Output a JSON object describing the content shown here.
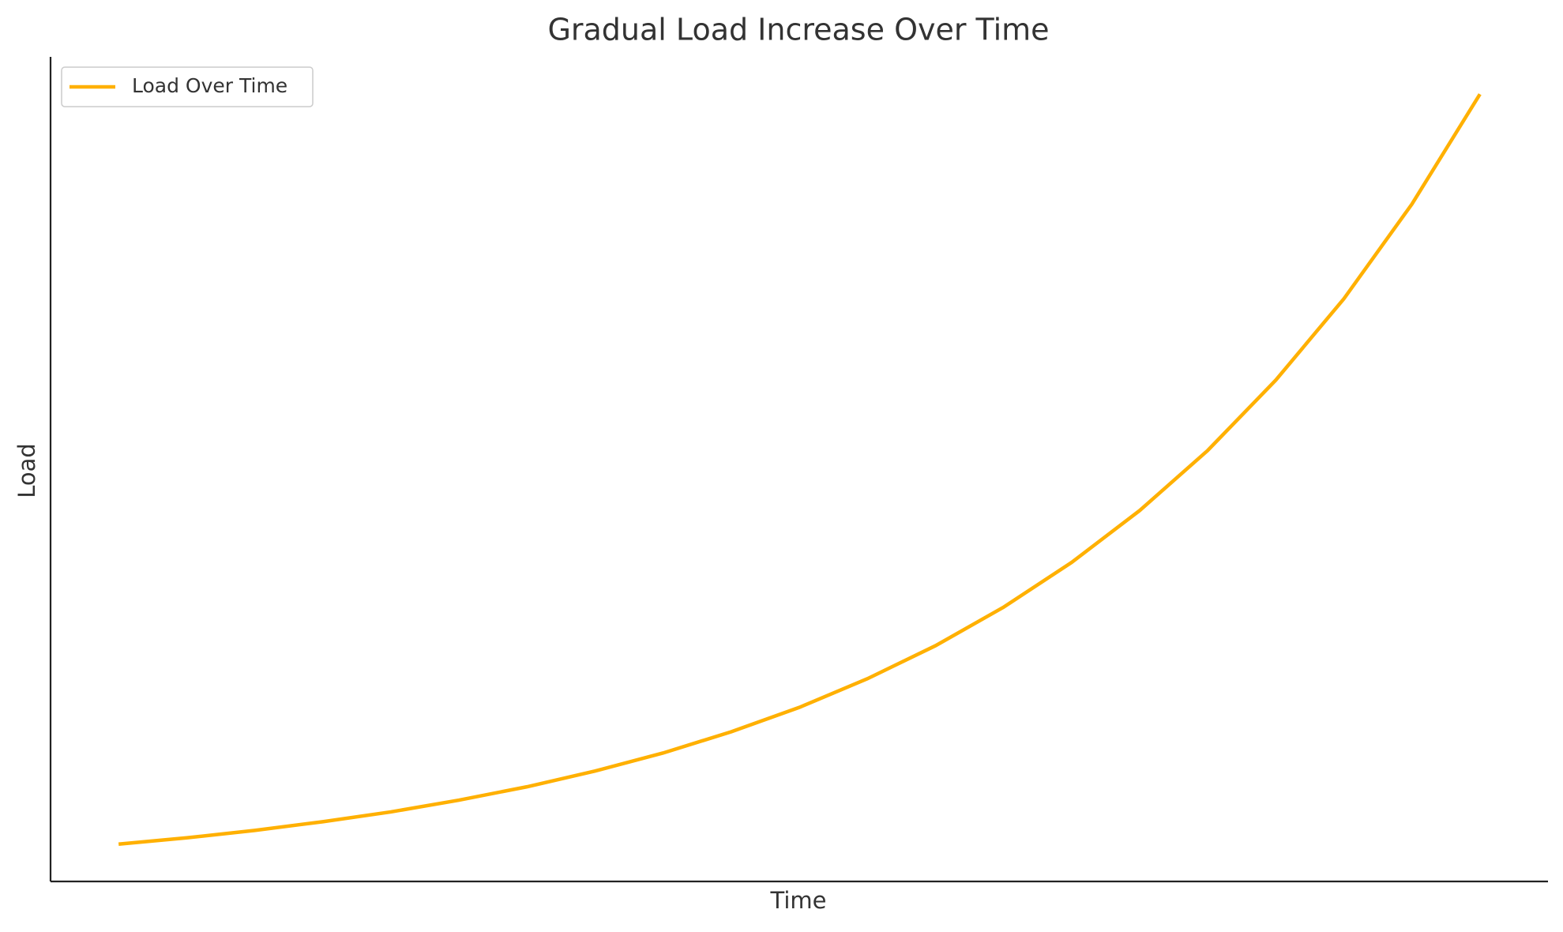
{
  "chart_data": {
    "type": "line",
    "title": "Gradual Load Increase Over Time",
    "x_label": "Time",
    "y_label": "Load",
    "x": [
      0,
      0.5,
      1,
      1.5,
      2,
      2.5,
      3,
      3.5,
      4,
      4.5,
      5,
      5.5,
      6,
      6.5,
      7,
      7.5,
      8,
      8.5,
      9,
      9.5,
      10
    ],
    "series": [
      {
        "name": "Load Over Time",
        "color": "#ffb000",
        "values": [
          1.0,
          1.16,
          1.35,
          1.57,
          1.82,
          2.12,
          2.46,
          2.86,
          3.32,
          3.86,
          4.48,
          5.21,
          6.05,
          7.03,
          8.17,
          9.49,
          11.02,
          12.81,
          14.88,
          17.29,
          20.09
        ]
      }
    ],
    "xlim": [
      -0.5,
      10.5
    ],
    "ylim": [
      0.05,
      21.04
    ],
    "legend": "upper left"
  }
}
